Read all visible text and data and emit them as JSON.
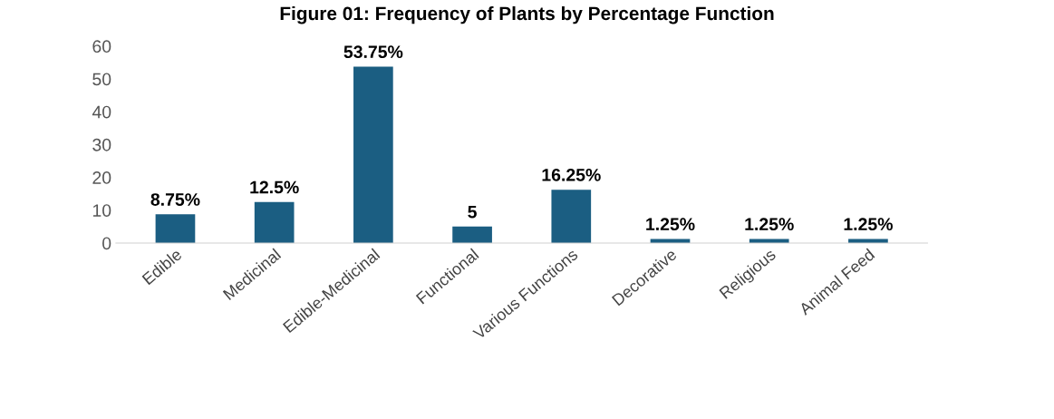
{
  "chart_data": {
    "type": "bar",
    "title": "Figure 01: Frequency of Plants by Percentage Function",
    "categories": [
      "Edible",
      "Medicinal",
      "Edible-Medicinal",
      "Functional",
      "Various Functions",
      "Decorative",
      "Religious",
      "Animal Feed"
    ],
    "values": [
      8.75,
      12.5,
      53.75,
      5,
      16.25,
      1.25,
      1.25,
      1.25
    ],
    "value_labels": [
      "8.75%",
      "12.5%",
      "53.75%",
      "5",
      "16.25%",
      "1.25%",
      "1.25%",
      "1.25%"
    ],
    "color": "#1b5e82",
    "ylim": [
      0,
      60
    ],
    "yticks": [
      0,
      10,
      20,
      30,
      40,
      50,
      60
    ],
    "grid": false
  }
}
